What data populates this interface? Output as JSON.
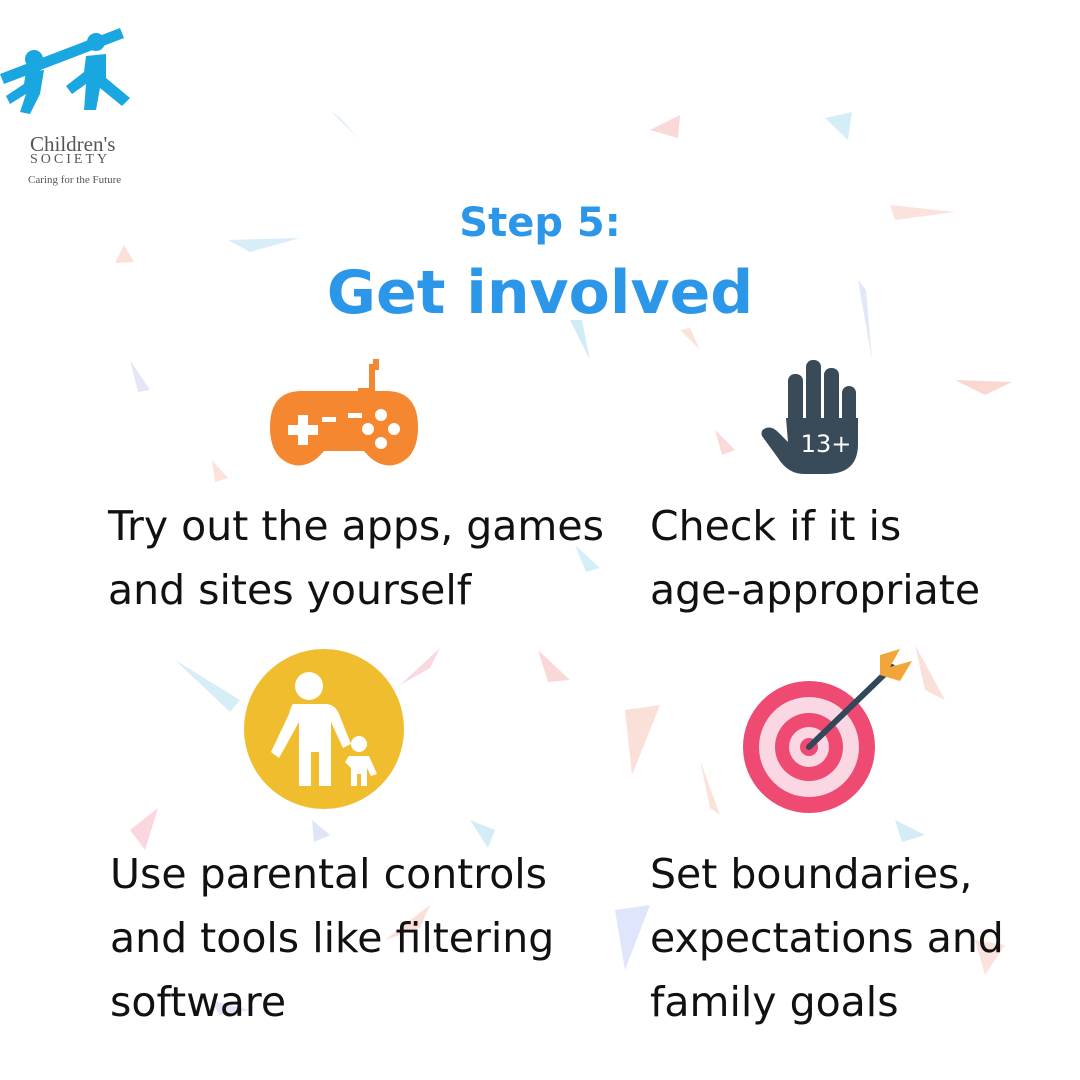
{
  "logo": {
    "name": "Children's",
    "sub": "SOCIETY",
    "tagline": "Caring for the Future",
    "icon": "children-holding-hands-icon"
  },
  "heading": {
    "step": "Step 5:",
    "title": "Get involved"
  },
  "items": [
    {
      "icon": "game-controller-icon",
      "text": "Try out the apps, games\nand sites yourself",
      "color": "#f4872f"
    },
    {
      "icon": "hand-13-plus-icon",
      "text": "Check if it is\nage-appropriate",
      "badge": "13+",
      "color": "#394a59"
    },
    {
      "icon": "parent-child-icon",
      "text": "Use parental controls\nand tools like filtering\nsoftware",
      "color": "#f0bd2e"
    },
    {
      "icon": "target-arrow-icon",
      "text": "Set boundaries,\nexpectations and\nfamily goals",
      "color": "#ee4a72"
    }
  ],
  "colors": {
    "heading": "#2c97e8",
    "logo": "#1aa6e0",
    "text": "#111111"
  }
}
